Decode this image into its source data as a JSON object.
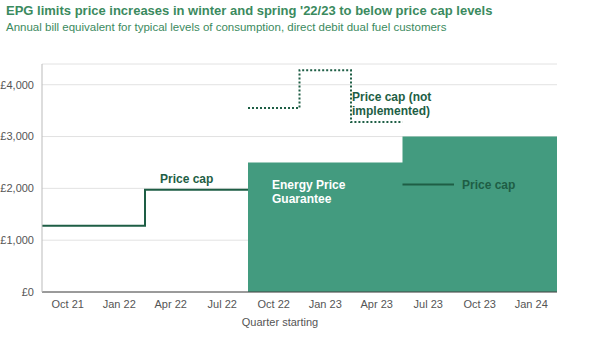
{
  "chart_data": {
    "type": "step",
    "title": "EPG limits price increases in winter and spring '22/23 to below price cap levels",
    "subtitle": "Annual bill equivalent for typical levels of consumption, direct debit dual fuel customers",
    "x_label": "Quarter starting",
    "categories": [
      "Oct 21",
      "Jan 22",
      "Apr 22",
      "Jul 22",
      "Oct 22",
      "Jan 23",
      "Apr 23",
      "Jul 23",
      "Oct 23",
      "Jan 24"
    ],
    "series": [
      {
        "name": "Energy Price Guarantee",
        "type": "area",
        "color": "#439b7f",
        "line_style": "solid",
        "values": [
          null,
          null,
          null,
          null,
          2500,
          2500,
          2500,
          3000,
          3000,
          3000
        ]
      },
      {
        "name": "Price cap (not implemented)",
        "type": "line",
        "color": "#1e5e45",
        "line_style": "dotted",
        "values": [
          null,
          null,
          null,
          null,
          3549,
          4279,
          3280,
          null,
          null,
          null
        ]
      },
      {
        "name": "Price cap",
        "type": "line",
        "color": "#1e5e45",
        "line_style": "solid",
        "values": [
          1277,
          1277,
          1971,
          1971,
          null,
          null,
          null,
          2074,
          null,
          null
        ]
      }
    ],
    "annotations": [
      "Price cap",
      "Price cap (not implemented)",
      "Energy Price Guarantee",
      "Price cap"
    ],
    "ylim": [
      0,
      4400
    ],
    "yticks": [
      {
        "value": 0,
        "label": "£0"
      },
      {
        "value": 1000,
        "label": "£1,000"
      },
      {
        "value": 2000,
        "label": "£2,000"
      },
      {
        "value": 3000,
        "label": "£3,000"
      },
      {
        "value": 4000,
        "label": "£4,000"
      }
    ],
    "grid": true,
    "legend": false
  }
}
